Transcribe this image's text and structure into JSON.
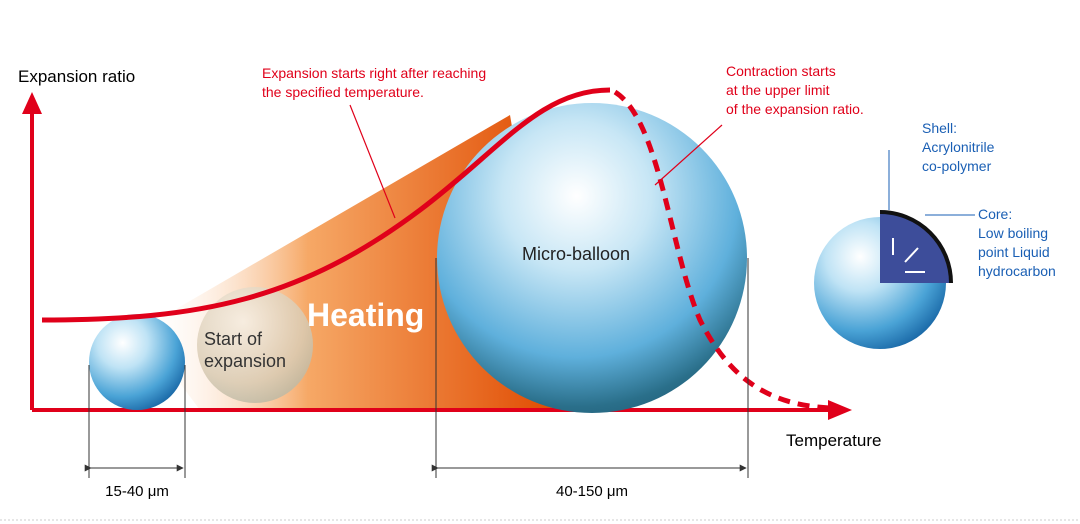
{
  "axes": {
    "y_label": "Expansion ratio",
    "x_label": "Temperature"
  },
  "annotations": {
    "expansion_start": [
      "Expansion starts right after reaching",
      "the specified temperature."
    ],
    "contraction_start": [
      "Contraction starts",
      "at the upper limit",
      "of the expansion ratio."
    ],
    "heating": "Heating",
    "start_of_expansion": [
      "Start of",
      "expansion"
    ],
    "micro_balloon": "Micro-balloon"
  },
  "structure": {
    "shell": [
      "Shell:",
      "Acrylonitrile",
      "co-polymer"
    ],
    "core": [
      "Core:",
      "Low boiling",
      "point Liquid",
      "hydrocarbon"
    ]
  },
  "dimensions": {
    "small": "15-40 μm",
    "large": "40-150 μm"
  }
}
